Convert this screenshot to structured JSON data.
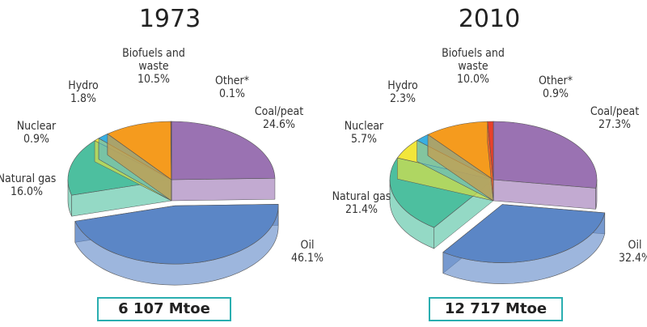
{
  "chart_data": [
    {
      "type": "pie",
      "title": "1973",
      "total": "6 107 Mtoe",
      "categories": [
        "Coal/peat",
        "Oil",
        "Natural gas",
        "Nuclear",
        "Hydro",
        "Biofuels and waste",
        "Other*"
      ],
      "values": [
        24.6,
        46.1,
        16.0,
        0.9,
        1.8,
        10.5,
        0.1
      ],
      "value_labels": [
        "24.6%",
        "46.1%",
        "16.0%",
        "0.9%",
        "1.8%",
        "10.5%",
        "0.1%"
      ],
      "colors": [
        "#9a72b2",
        "#5b86c6",
        "#4dbf9f",
        "#f2e63a",
        "#38afe2",
        "#f59b1e",
        "#e8412b"
      ],
      "explode": "Oil"
    },
    {
      "type": "pie",
      "title": "2010",
      "total": "12 717 Mtoe",
      "categories": [
        "Coal/peat",
        "Oil",
        "Natural gas",
        "Nuclear",
        "Hydro",
        "Biofuels and waste",
        "Other*"
      ],
      "values": [
        27.3,
        32.4,
        21.4,
        5.7,
        2.3,
        10.0,
        0.9
      ],
      "value_labels": [
        "27.3%",
        "32.4%",
        "21.4%",
        "5.7%",
        "2.3%",
        "10.0%",
        "0.9%"
      ],
      "colors": [
        "#9a72b2",
        "#5b86c6",
        "#4dbf9f",
        "#f2e63a",
        "#38afe2",
        "#f59b1e",
        "#e8412b"
      ],
      "explode": "Oil"
    }
  ]
}
